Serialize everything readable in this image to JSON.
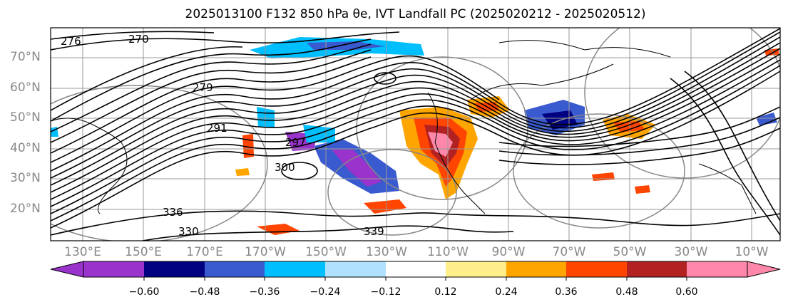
{
  "title": "2025013100 F132 850 hPa θe, IVT Landfall PC (2025020212 - 2025020512)",
  "map": {
    "lat_labels": [
      {
        "text": "70°N",
        "lat": 70
      },
      {
        "text": "60°N",
        "lat": 60
      },
      {
        "text": "50°N",
        "lat": 50
      },
      {
        "text": "40°N",
        "lat": 40
      },
      {
        "text": "30°N",
        "lat": 30
      },
      {
        "text": "20°N",
        "lat": 20
      }
    ],
    "lon_labels": [
      {
        "text": "130°E",
        "lon": 130
      },
      {
        "text": "150°E",
        "lon": 150
      },
      {
        "text": "170°E",
        "lon": 170
      },
      {
        "text": "170°W",
        "lon": 190
      },
      {
        "text": "150°W",
        "lon": 210
      },
      {
        "text": "130°W",
        "lon": 230
      },
      {
        "text": "110°W",
        "lon": 250
      },
      {
        "text": "90°W",
        "lon": 270
      },
      {
        "text": "70°W",
        "lon": 290
      },
      {
        "text": "50°W",
        "lon": 310
      },
      {
        "text": "30°W",
        "lon": 330
      },
      {
        "text": "10°W",
        "lon": 350
      }
    ],
    "contour_labels": [
      "276",
      "270",
      "279",
      "291",
      "297",
      "300",
      "336",
      "339",
      "330"
    ]
  },
  "colorbar": {
    "colors": [
      "#9933cc",
      "#000080",
      "#3a5bcf",
      "#00bfff",
      "#b0e2ff",
      "#ffffff",
      "#ffee8a",
      "#ffa500",
      "#ff4500",
      "#b22222",
      "#ff88aa"
    ],
    "tick_labels": [
      "−0.60",
      "−0.48",
      "−0.36",
      "−0.24",
      "−0.12",
      "0.12",
      "0.24",
      "0.36",
      "0.48",
      "0.60"
    ]
  }
}
